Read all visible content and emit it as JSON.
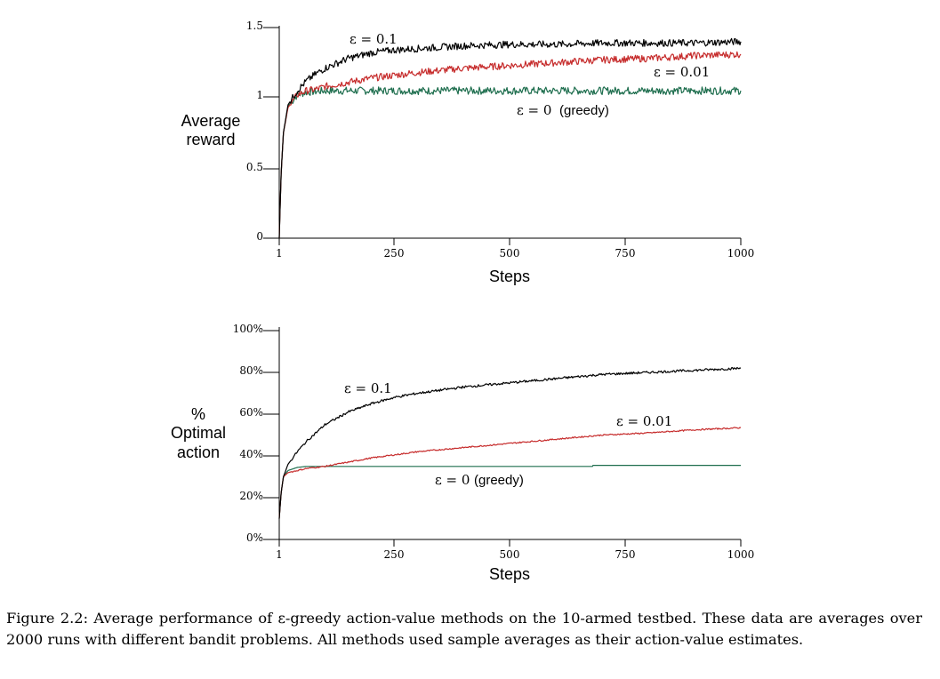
{
  "caption": "Figure 2.2: Average performance of ε-greedy action-value methods on the 10-armed testbed. These data are averages over 2000 runs with different bandit problems. All methods used sample averages as their action-value estimates.",
  "colors": {
    "eps_0_1": "#000000",
    "eps_0_01": "#c62b2b",
    "greedy": "#1e6e4e"
  },
  "chart_data": [
    {
      "type": "line",
      "title": "",
      "xlabel": "Steps",
      "ylabel": [
        "Average",
        "reward"
      ],
      "xlim": [
        1,
        1000
      ],
      "ylim": [
        0,
        1.5
      ],
      "x_ticks": [
        "1",
        "250",
        "500",
        "750",
        "1000"
      ],
      "y_ticks": [
        "0",
        "0.5",
        "1",
        "1.5"
      ],
      "series_labels": {
        "eps_0_1": "ε = 0.1",
        "eps_0_01": "ε = 0.01",
        "greedy_eps": "ε = 0",
        "greedy_word": "(greedy)"
      },
      "series": [
        {
          "key": "eps_0_1",
          "x": [
            1,
            5,
            10,
            20,
            40,
            60,
            80,
            100,
            150,
            200,
            250,
            300,
            400,
            500,
            600,
            700,
            800,
            900,
            1000
          ],
          "values": [
            0.0,
            0.45,
            0.75,
            0.95,
            1.05,
            1.12,
            1.17,
            1.21,
            1.28,
            1.32,
            1.34,
            1.35,
            1.37,
            1.38,
            1.38,
            1.39,
            1.39,
            1.39,
            1.4
          ]
        },
        {
          "key": "eps_0_01",
          "x": [
            1,
            5,
            10,
            20,
            40,
            60,
            80,
            100,
            150,
            200,
            250,
            300,
            400,
            500,
            600,
            700,
            800,
            900,
            1000
          ],
          "values": [
            0.0,
            0.45,
            0.75,
            0.93,
            1.02,
            1.05,
            1.06,
            1.08,
            1.11,
            1.14,
            1.16,
            1.18,
            1.21,
            1.23,
            1.25,
            1.27,
            1.28,
            1.3,
            1.31
          ]
        },
        {
          "key": "greedy",
          "x": [
            1,
            5,
            10,
            20,
            40,
            60,
            80,
            100,
            150,
            200,
            250,
            300,
            400,
            500,
            600,
            700,
            800,
            900,
            1000
          ],
          "values": [
            0.0,
            0.45,
            0.75,
            0.94,
            1.02,
            1.04,
            1.045,
            1.05,
            1.05,
            1.05,
            1.05,
            1.05,
            1.05,
            1.05,
            1.05,
            1.05,
            1.05,
            1.05,
            1.05
          ]
        }
      ]
    },
    {
      "type": "line",
      "title": "",
      "xlabel": "Steps",
      "ylabel": [
        "%",
        "Optimal",
        "action"
      ],
      "xlim": [
        1,
        1000
      ],
      "ylim": [
        0,
        100
      ],
      "x_ticks": [
        "1",
        "250",
        "500",
        "750",
        "1000"
      ],
      "y_ticks": [
        "0%",
        "20%",
        "40%",
        "60%",
        "80%",
        "100%"
      ],
      "series_labels": {
        "eps_0_1": "ε = 0.1",
        "eps_0_01": "ε = 0.01",
        "greedy_eps": "ε = 0",
        "greedy_word": "(greedy)"
      },
      "series": [
        {
          "key": "eps_0_1",
          "x": [
            1,
            5,
            10,
            20,
            40,
            60,
            80,
            100,
            150,
            200,
            250,
            300,
            400,
            500,
            600,
            700,
            800,
            900,
            1000
          ],
          "values": [
            10,
            22,
            30,
            36,
            42,
            47,
            51,
            55,
            61,
            65,
            68,
            70,
            73,
            75,
            77,
            79,
            80,
            81,
            82
          ]
        },
        {
          "key": "eps_0_01",
          "x": [
            1,
            5,
            10,
            20,
            40,
            60,
            80,
            100,
            150,
            200,
            250,
            300,
            400,
            500,
            600,
            700,
            800,
            900,
            1000
          ],
          "values": [
            10,
            22,
            30,
            32,
            33,
            34,
            34.5,
            35,
            37,
            39,
            40.5,
            42,
            44,
            46,
            48,
            50,
            51,
            52.5,
            53.5
          ]
        },
        {
          "key": "greedy",
          "x": [
            1,
            5,
            10,
            20,
            40,
            60,
            80,
            100,
            150,
            200,
            250,
            300,
            400,
            500,
            600,
            679,
            680,
            800,
            900,
            1000
          ],
          "values": [
            10,
            22,
            30,
            33,
            34.5,
            35,
            35,
            35,
            35,
            35,
            35,
            35,
            35,
            35,
            35,
            35,
            35.5,
            35.5,
            35.5,
            35.5
          ]
        }
      ]
    }
  ]
}
